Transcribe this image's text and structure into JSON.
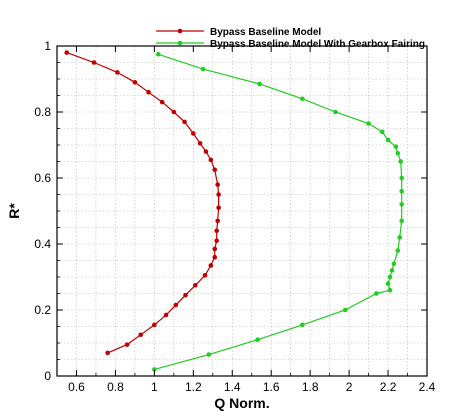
{
  "chart_data": {
    "type": "line",
    "title": "",
    "xlabel": "Q Norm.",
    "ylabel": "R*",
    "xlim": [
      0.5,
      2.4
    ],
    "ylim": [
      0,
      1
    ],
    "xticks": [
      0.6,
      0.8,
      1,
      1.2,
      1.4,
      1.6,
      1.8,
      2,
      2.2,
      2.4
    ],
    "yticks": [
      0,
      0.2,
      0.4,
      0.6,
      0.8,
      1
    ],
    "xtick_labels": [
      "0.6",
      "0.8",
      "1",
      "1.2",
      "1.4",
      "1.6",
      "1.8",
      "2",
      "2.2",
      "2.4"
    ],
    "ytick_labels": [
      "0",
      "0.2",
      "0.4",
      "0.6",
      "0.8",
      "1"
    ],
    "grid": true,
    "legend_position": "top-center",
    "series": [
      {
        "name": "Bypass Baseline Model",
        "color": "#c00000",
        "marker": "circle",
        "points": [
          [
            0.76,
            0.07
          ],
          [
            0.86,
            0.095
          ],
          [
            0.93,
            0.125
          ],
          [
            1.0,
            0.155
          ],
          [
            1.06,
            0.185
          ],
          [
            1.11,
            0.215
          ],
          [
            1.16,
            0.245
          ],
          [
            1.21,
            0.275
          ],
          [
            1.26,
            0.305
          ],
          [
            1.29,
            0.335
          ],
          [
            1.31,
            0.36
          ],
          [
            1.31,
            0.385
          ],
          [
            1.32,
            0.41
          ],
          [
            1.32,
            0.44
          ],
          [
            1.325,
            0.47
          ],
          [
            1.33,
            0.51
          ],
          [
            1.33,
            0.55
          ],
          [
            1.325,
            0.58
          ],
          [
            1.31,
            0.625
          ],
          [
            1.29,
            0.655
          ],
          [
            1.265,
            0.68
          ],
          [
            1.235,
            0.705
          ],
          [
            1.2,
            0.735
          ],
          [
            1.155,
            0.77
          ],
          [
            1.1,
            0.8
          ],
          [
            1.04,
            0.83
          ],
          [
            0.97,
            0.86
          ],
          [
            0.9,
            0.89
          ],
          [
            0.81,
            0.92
          ],
          [
            0.69,
            0.95
          ],
          [
            0.55,
            0.98
          ]
        ]
      },
      {
        "name": "Bypass Baseline Model With Gearbox Fairing",
        "color": "#22cc22",
        "marker": "circle",
        "points": [
          [
            1.0,
            0.02
          ],
          [
            1.28,
            0.065
          ],
          [
            1.53,
            0.11
          ],
          [
            1.76,
            0.155
          ],
          [
            1.98,
            0.2
          ],
          [
            2.14,
            0.25
          ],
          [
            2.21,
            0.26
          ],
          [
            2.2,
            0.28
          ],
          [
            2.21,
            0.3
          ],
          [
            2.22,
            0.32
          ],
          [
            2.23,
            0.34
          ],
          [
            2.25,
            0.38
          ],
          [
            2.26,
            0.42
          ],
          [
            2.27,
            0.47
          ],
          [
            2.27,
            0.52
          ],
          [
            2.27,
            0.56
          ],
          [
            2.27,
            0.6
          ],
          [
            2.265,
            0.65
          ],
          [
            2.25,
            0.675
          ],
          [
            2.24,
            0.695
          ],
          [
            2.2,
            0.715
          ],
          [
            2.17,
            0.74
          ],
          [
            2.1,
            0.765
          ],
          [
            1.93,
            0.8
          ],
          [
            1.76,
            0.84
          ],
          [
            1.54,
            0.885
          ],
          [
            1.25,
            0.93
          ],
          [
            1.02,
            0.975
          ]
        ]
      }
    ]
  }
}
